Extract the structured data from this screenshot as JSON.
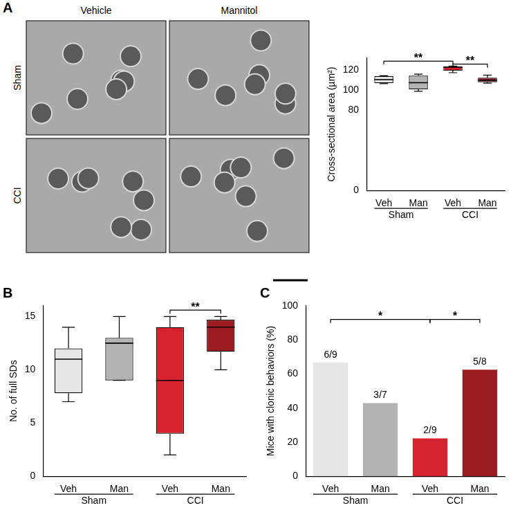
{
  "images": {
    "panel_label": "A",
    "columns": [
      "Vehicle",
      "Mannitol"
    ],
    "rows": [
      "Sham",
      "CCI"
    ]
  },
  "chart_data": [
    {
      "type": "box",
      "panel_label": "A",
      "categories": [
        "Veh",
        "Man",
        "Veh",
        "Man"
      ],
      "groups": [
        {
          "label": "Sham",
          "span": [
            0,
            1
          ]
        },
        {
          "label": "CCI",
          "span": [
            2,
            3
          ]
        }
      ],
      "boxes": [
        {
          "min": 106.5,
          "q1": 107,
          "median": 110.5,
          "q3": 114,
          "max": 114.5
        },
        {
          "min": 99,
          "q1": 101,
          "median": 107.5,
          "q3": 114.5,
          "max": 116
        },
        {
          "min": 117.5,
          "q1": 119.5,
          "median": 123,
          "q3": 123.5,
          "max": 124
        },
        {
          "min": 107,
          "q1": 108,
          "median": 110,
          "q3": 112.5,
          "max": 115
        }
      ],
      "colors": [
        "#e6e6e6",
        "#b3b3b3",
        "#d7232d",
        "#9b1b22"
      ],
      "y_label": "Cross-sectional area (µm²)",
      "ylim": [
        0,
        132
      ],
      "yticks": [
        0,
        80,
        100,
        120
      ],
      "grid": false,
      "annotations": [
        {
          "from": 0,
          "to": 2,
          "y": 129,
          "text": "**"
        },
        {
          "from": 2,
          "to": 3,
          "y": 126,
          "text": "**"
        }
      ]
    },
    {
      "type": "box",
      "panel_label": "B",
      "categories": [
        "Veh",
        "Man",
        "Veh",
        "Man"
      ],
      "groups": [
        {
          "label": "Sham",
          "span": [
            0,
            1
          ]
        },
        {
          "label": "CCI",
          "span": [
            2,
            3
          ]
        }
      ],
      "boxes": [
        {
          "min": 7,
          "q1": 7.8,
          "median": 11,
          "q3": 12,
          "max": 14
        },
        {
          "min": 9,
          "q1": 9,
          "median": 12.5,
          "q3": 13,
          "max": 15
        },
        {
          "min": 2,
          "q1": 4,
          "median": 9,
          "q3": 14,
          "max": 15
        },
        {
          "min": 10,
          "q1": 11.7,
          "median": 14,
          "q3": 14.7,
          "max": 15
        }
      ],
      "colors": [
        "#e6e6e6",
        "#b3b3b3",
        "#d7232d",
        "#9b1b22"
      ],
      "y_label": "No. of full SDs",
      "ylim": [
        0,
        16
      ],
      "yticks": [
        0,
        5,
        10,
        15
      ],
      "grid": false,
      "annotations": [
        {
          "from": 2,
          "to": 3,
          "y": 15.6,
          "text": "**"
        }
      ]
    },
    {
      "type": "bar",
      "panel_label": "C",
      "categories": [
        "Veh",
        "Man",
        "Veh",
        "Man"
      ],
      "groups": [
        {
          "label": "Sham",
          "span": [
            0,
            1
          ]
        },
        {
          "label": "CCI",
          "span": [
            2,
            3
          ]
        }
      ],
      "values": [
        66.7,
        42.9,
        22.2,
        62.5
      ],
      "value_labels": [
        "6/9",
        "3/7",
        "2/9",
        "5/8"
      ],
      "data_labels": true,
      "colors": [
        "#e6e6e6",
        "#b3b3b3",
        "#d7232d",
        "#9b1b22"
      ],
      "y_label": "Mice with clonic behaviors (%)",
      "ylim": [
        0,
        100
      ],
      "yticks": [
        0,
        20,
        40,
        60,
        80,
        100
      ],
      "grid": false,
      "annotations": [
        {
          "from": 0,
          "to": 2,
          "y": 92,
          "text": "*"
        },
        {
          "from": 2,
          "to": 3,
          "y": 92,
          "text": "*"
        }
      ]
    }
  ]
}
